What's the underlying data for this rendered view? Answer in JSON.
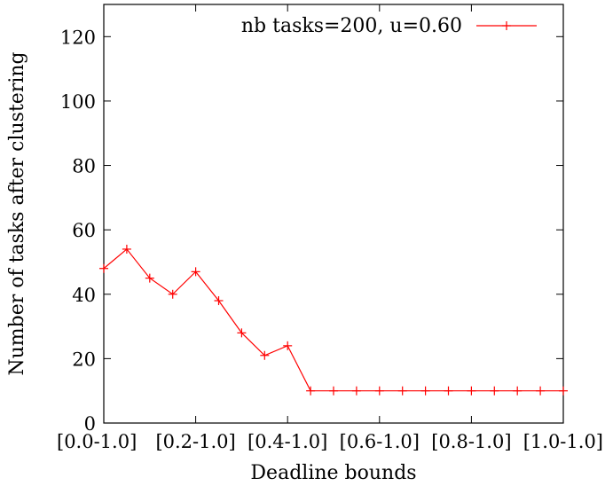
{
  "chart_data": {
    "type": "line",
    "title": "",
    "xlabel": "Deadline bounds",
    "ylabel": "Number of tasks after clustering",
    "ylim": [
      0,
      130
    ],
    "xlim": [
      0,
      20
    ],
    "yticks": [
      0,
      20,
      40,
      60,
      80,
      100,
      120
    ],
    "xtick_positions": [
      0,
      4,
      8,
      12,
      16,
      20
    ],
    "xtick_labels": [
      "[0.0-1.0]",
      "[0.2-1.0]",
      "[0.4-1.0]",
      "[0.6-1.0]",
      "[0.8-1.0]",
      "[1.0-1.0]"
    ],
    "grid": false,
    "legend_position": "top-right",
    "series": [
      {
        "name": "nb tasks=200, u=0.60",
        "color": "#ff0000",
        "marker": "plus",
        "x": [
          0,
          1,
          2,
          3,
          4,
          5,
          6,
          7,
          8,
          9,
          10,
          11,
          12,
          13,
          14,
          15,
          16,
          17,
          18,
          19,
          20
        ],
        "y": [
          48,
          54,
          45,
          40,
          47,
          38,
          28,
          21,
          24,
          10,
          10,
          10,
          10,
          10,
          10,
          10,
          10,
          10,
          10,
          10,
          10
        ]
      }
    ]
  }
}
